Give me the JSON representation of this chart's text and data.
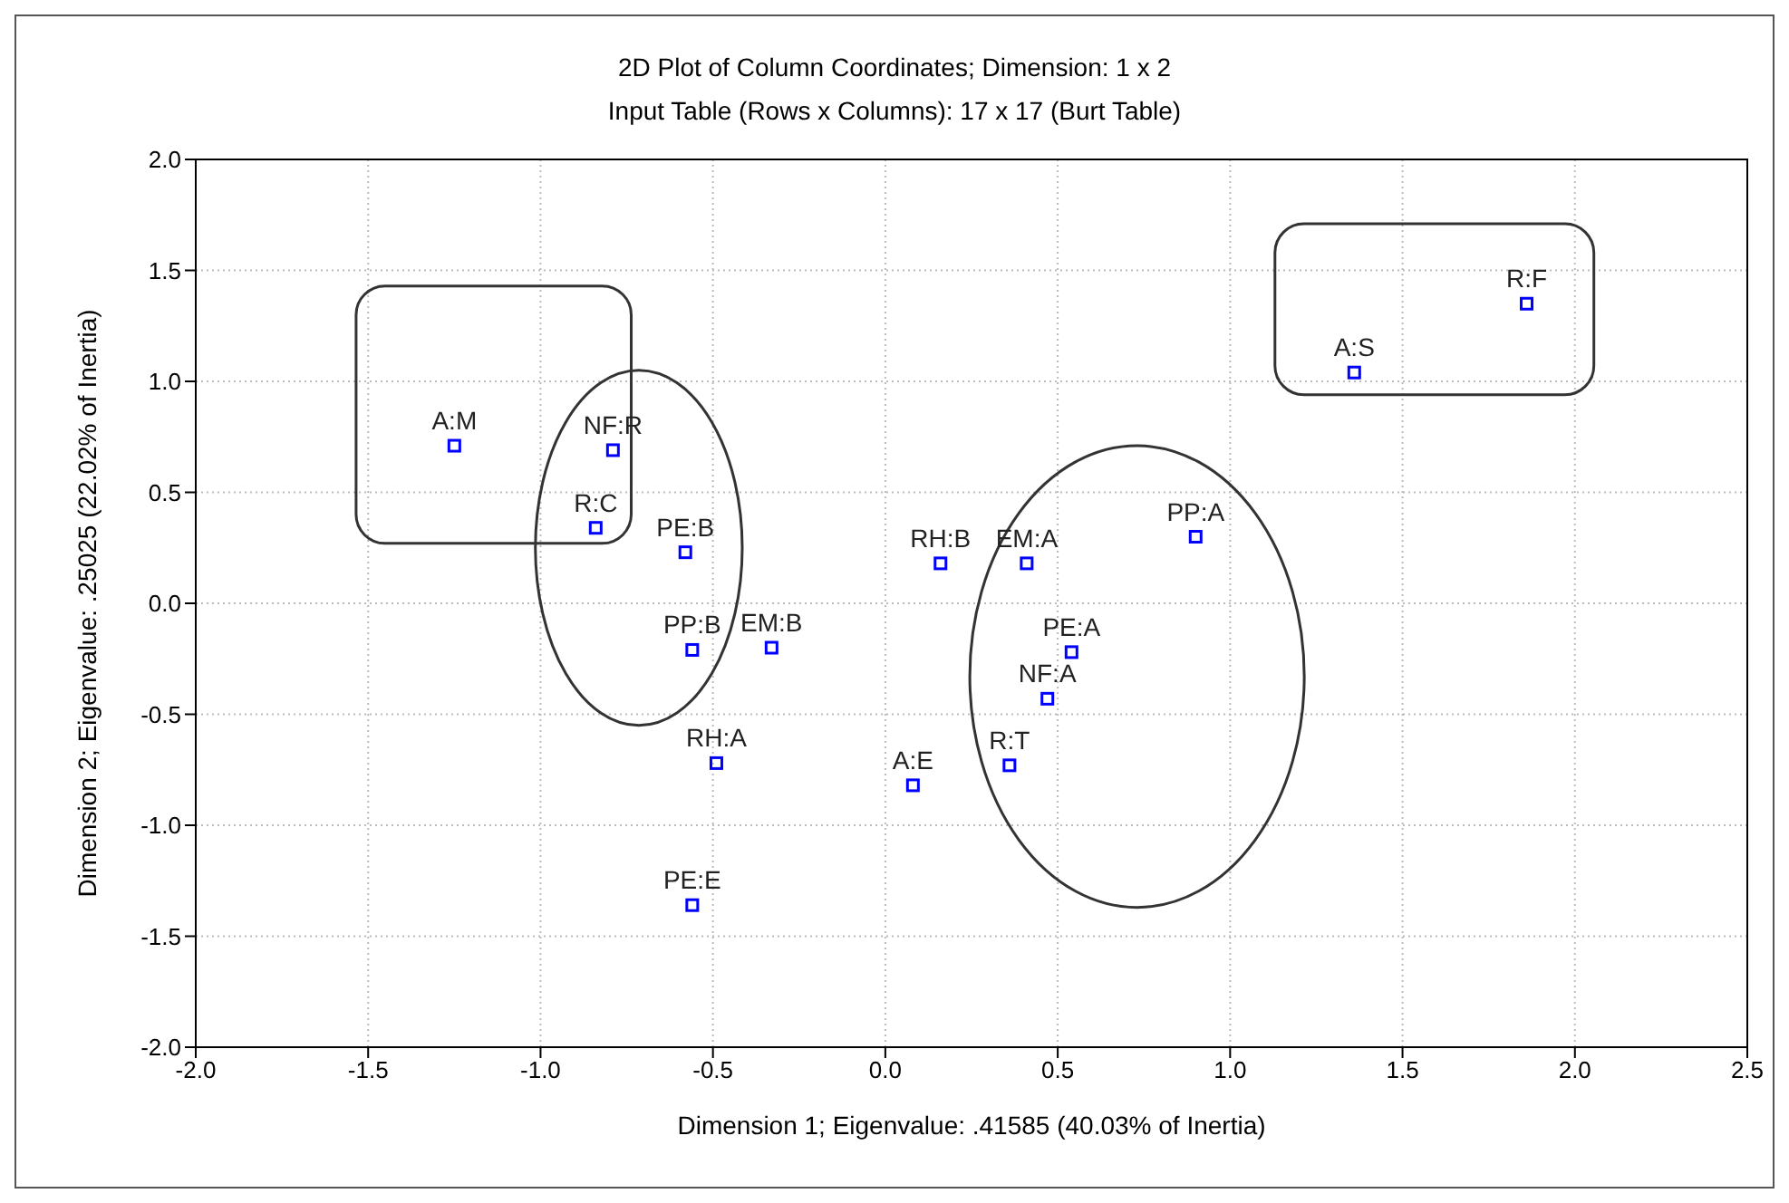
{
  "chart_data": {
    "type": "scatter",
    "title": "2D Plot of Column Coordinates; Dimension:  1 x  2",
    "subtitle": "Input Table (Rows x Columns): 17 x 17 (Burt Table)",
    "xlabel": "Dimension 1; Eigenvalue: .41585 (40.03% of Inertia)",
    "ylabel": "Dimension 2; Eigenvalue: .25025 (22.02% of Inertia)",
    "xlim": [
      -2,
      2.5
    ],
    "ylim": [
      -2,
      2
    ],
    "xticks": [
      {
        "value": -2,
        "label": "-2.0"
      },
      {
        "value": -1.5,
        "label": "-1.5"
      },
      {
        "value": -1,
        "label": "-1.0"
      },
      {
        "value": -0.5,
        "label": "-0.5"
      },
      {
        "value": 0,
        "label": "0.0"
      },
      {
        "value": 0.5,
        "label": "0.5"
      },
      {
        "value": 1,
        "label": "1.0"
      },
      {
        "value": 1.5,
        "label": "1.5"
      },
      {
        "value": 2,
        "label": "2.0"
      },
      {
        "value": 2.5,
        "label": "2.5"
      }
    ],
    "yticks": [
      {
        "value": -2,
        "label": "-2.0"
      },
      {
        "value": -1.5,
        "label": "-1.5"
      },
      {
        "value": -1,
        "label": "-1.0"
      },
      {
        "value": -0.5,
        "label": "-0.5"
      },
      {
        "value": 0,
        "label": "0.0"
      },
      {
        "value": 0.5,
        "label": "0.5"
      },
      {
        "value": 1,
        "label": "1.0"
      },
      {
        "value": 1.5,
        "label": "1.5"
      },
      {
        "value": 2,
        "label": "2.0"
      }
    ],
    "grid": true,
    "marker": "square",
    "series": [
      {
        "color": "#0000ff",
        "x": [
          -1.25,
          -0.79,
          -0.84,
          -0.58,
          -0.56,
          -0.33,
          -0.49,
          -0.56,
          0.16,
          0.41,
          0.9,
          0.54,
          0.47,
          0.36,
          0.08,
          1.36,
          1.86
        ],
        "values": [
          0.71,
          0.69,
          0.34,
          0.23,
          -0.21,
          -0.2,
          -0.72,
          -1.36,
          0.18,
          0.18,
          0.3,
          -0.22,
          -0.43,
          -0.73,
          -0.82,
          1.04,
          1.35
        ]
      }
    ],
    "annotations": [
      {
        "text": "A:M",
        "x": -1.25,
        "y": 0.71
      },
      {
        "text": "NF:R",
        "x": -0.79,
        "y": 0.69
      },
      {
        "text": "R:C",
        "x": -0.84,
        "y": 0.34
      },
      {
        "text": "PE:B",
        "x": -0.58,
        "y": 0.23
      },
      {
        "text": "PP:B",
        "x": -0.56,
        "y": -0.21
      },
      {
        "text": "EM:B",
        "x": -0.33,
        "y": -0.2
      },
      {
        "text": "RH:A",
        "x": -0.49,
        "y": -0.72
      },
      {
        "text": "PE:E",
        "x": -0.56,
        "y": -1.36
      },
      {
        "text": "RH:B",
        "x": 0.16,
        "y": 0.18
      },
      {
        "text": "EM:A",
        "x": 0.41,
        "y": 0.18
      },
      {
        "text": "PP:A",
        "x": 0.9,
        "y": 0.3
      },
      {
        "text": "PE:A",
        "x": 0.54,
        "y": -0.22
      },
      {
        "text": "NF:A",
        "x": 0.47,
        "y": -0.43
      },
      {
        "text": "R:T",
        "x": 0.36,
        "y": -0.73
      },
      {
        "text": "A:E",
        "x": 0.08,
        "y": -0.82
      },
      {
        "text": "A:S",
        "x": 1.36,
        "y": 1.04
      },
      {
        "text": "R:F",
        "x": 1.86,
        "y": 1.35
      }
    ]
  }
}
